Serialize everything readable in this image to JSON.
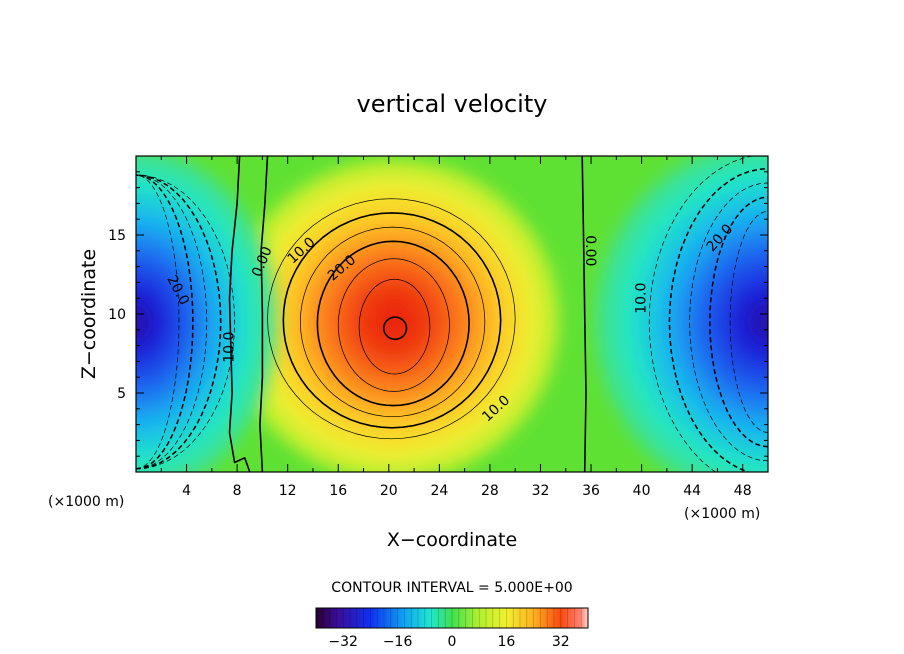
{
  "chart_data": {
    "type": "heatmap",
    "title": "vertical velocity",
    "xlabel": "X−coordinate",
    "ylabel": "Z−coordinate",
    "x_unit": "(×1000 m)",
    "z_unit": "(×1000 m)",
    "xlim": [
      0,
      50
    ],
    "ylim": [
      0,
      20
    ],
    "x_ticks": [
      4,
      8,
      12,
      16,
      20,
      24,
      28,
      32,
      36,
      40,
      44,
      48
    ],
    "x_tick_labels": [
      "4",
      "8",
      "12",
      "16",
      "20",
      "24",
      "28",
      "32",
      "36",
      "40",
      "44",
      "48"
    ],
    "y_ticks": [
      5,
      10,
      15
    ],
    "y_tick_labels": [
      "5",
      "10",
      "15"
    ],
    "contour_interval_text": "CONTOUR INTERVAL = 5.000E+00",
    "contour_interval": 5.0,
    "color_range": [
      -40,
      40
    ],
    "colorbar_ticks": [
      -32,
      -16,
      0,
      16,
      32
    ],
    "colorbar_tick_labels": [
      "−32",
      "−16",
      "0",
      "16",
      "32"
    ],
    "features": [
      {
        "name": "updraft-core",
        "x": 20,
        "z": 9,
        "max": 36
      },
      {
        "name": "downdraft-left",
        "x": 0,
        "z": 9,
        "min": -36
      },
      {
        "name": "downdraft-right",
        "x": 50,
        "z": 9,
        "min": -36
      }
    ],
    "contour_labels": [
      {
        "text": "20.0",
        "x": 3.3,
        "z": 11.5,
        "angle": 62
      },
      {
        "text": "10.0",
        "x": 7.4,
        "z": 7.9,
        "angle": -90
      },
      {
        "text": "0.00",
        "x": 10.0,
        "z": 13.3,
        "angle": -68
      },
      {
        "text": "10.0",
        "x": 13.1,
        "z": 14.0,
        "angle": -42
      },
      {
        "text": "20.0",
        "x": 16.3,
        "z": 12.9,
        "angle": -40
      },
      {
        "text": "10.0",
        "x": 28.5,
        "z": 4.0,
        "angle": -42
      },
      {
        "text": "0.00",
        "x": 35.9,
        "z": 14.0,
        "angle": 90
      },
      {
        "text": "10.0",
        "x": 40.0,
        "z": 11.0,
        "angle": -90
      },
      {
        "text": "20.0",
        "x": 46.2,
        "z": 14.8,
        "angle": -48
      }
    ]
  }
}
